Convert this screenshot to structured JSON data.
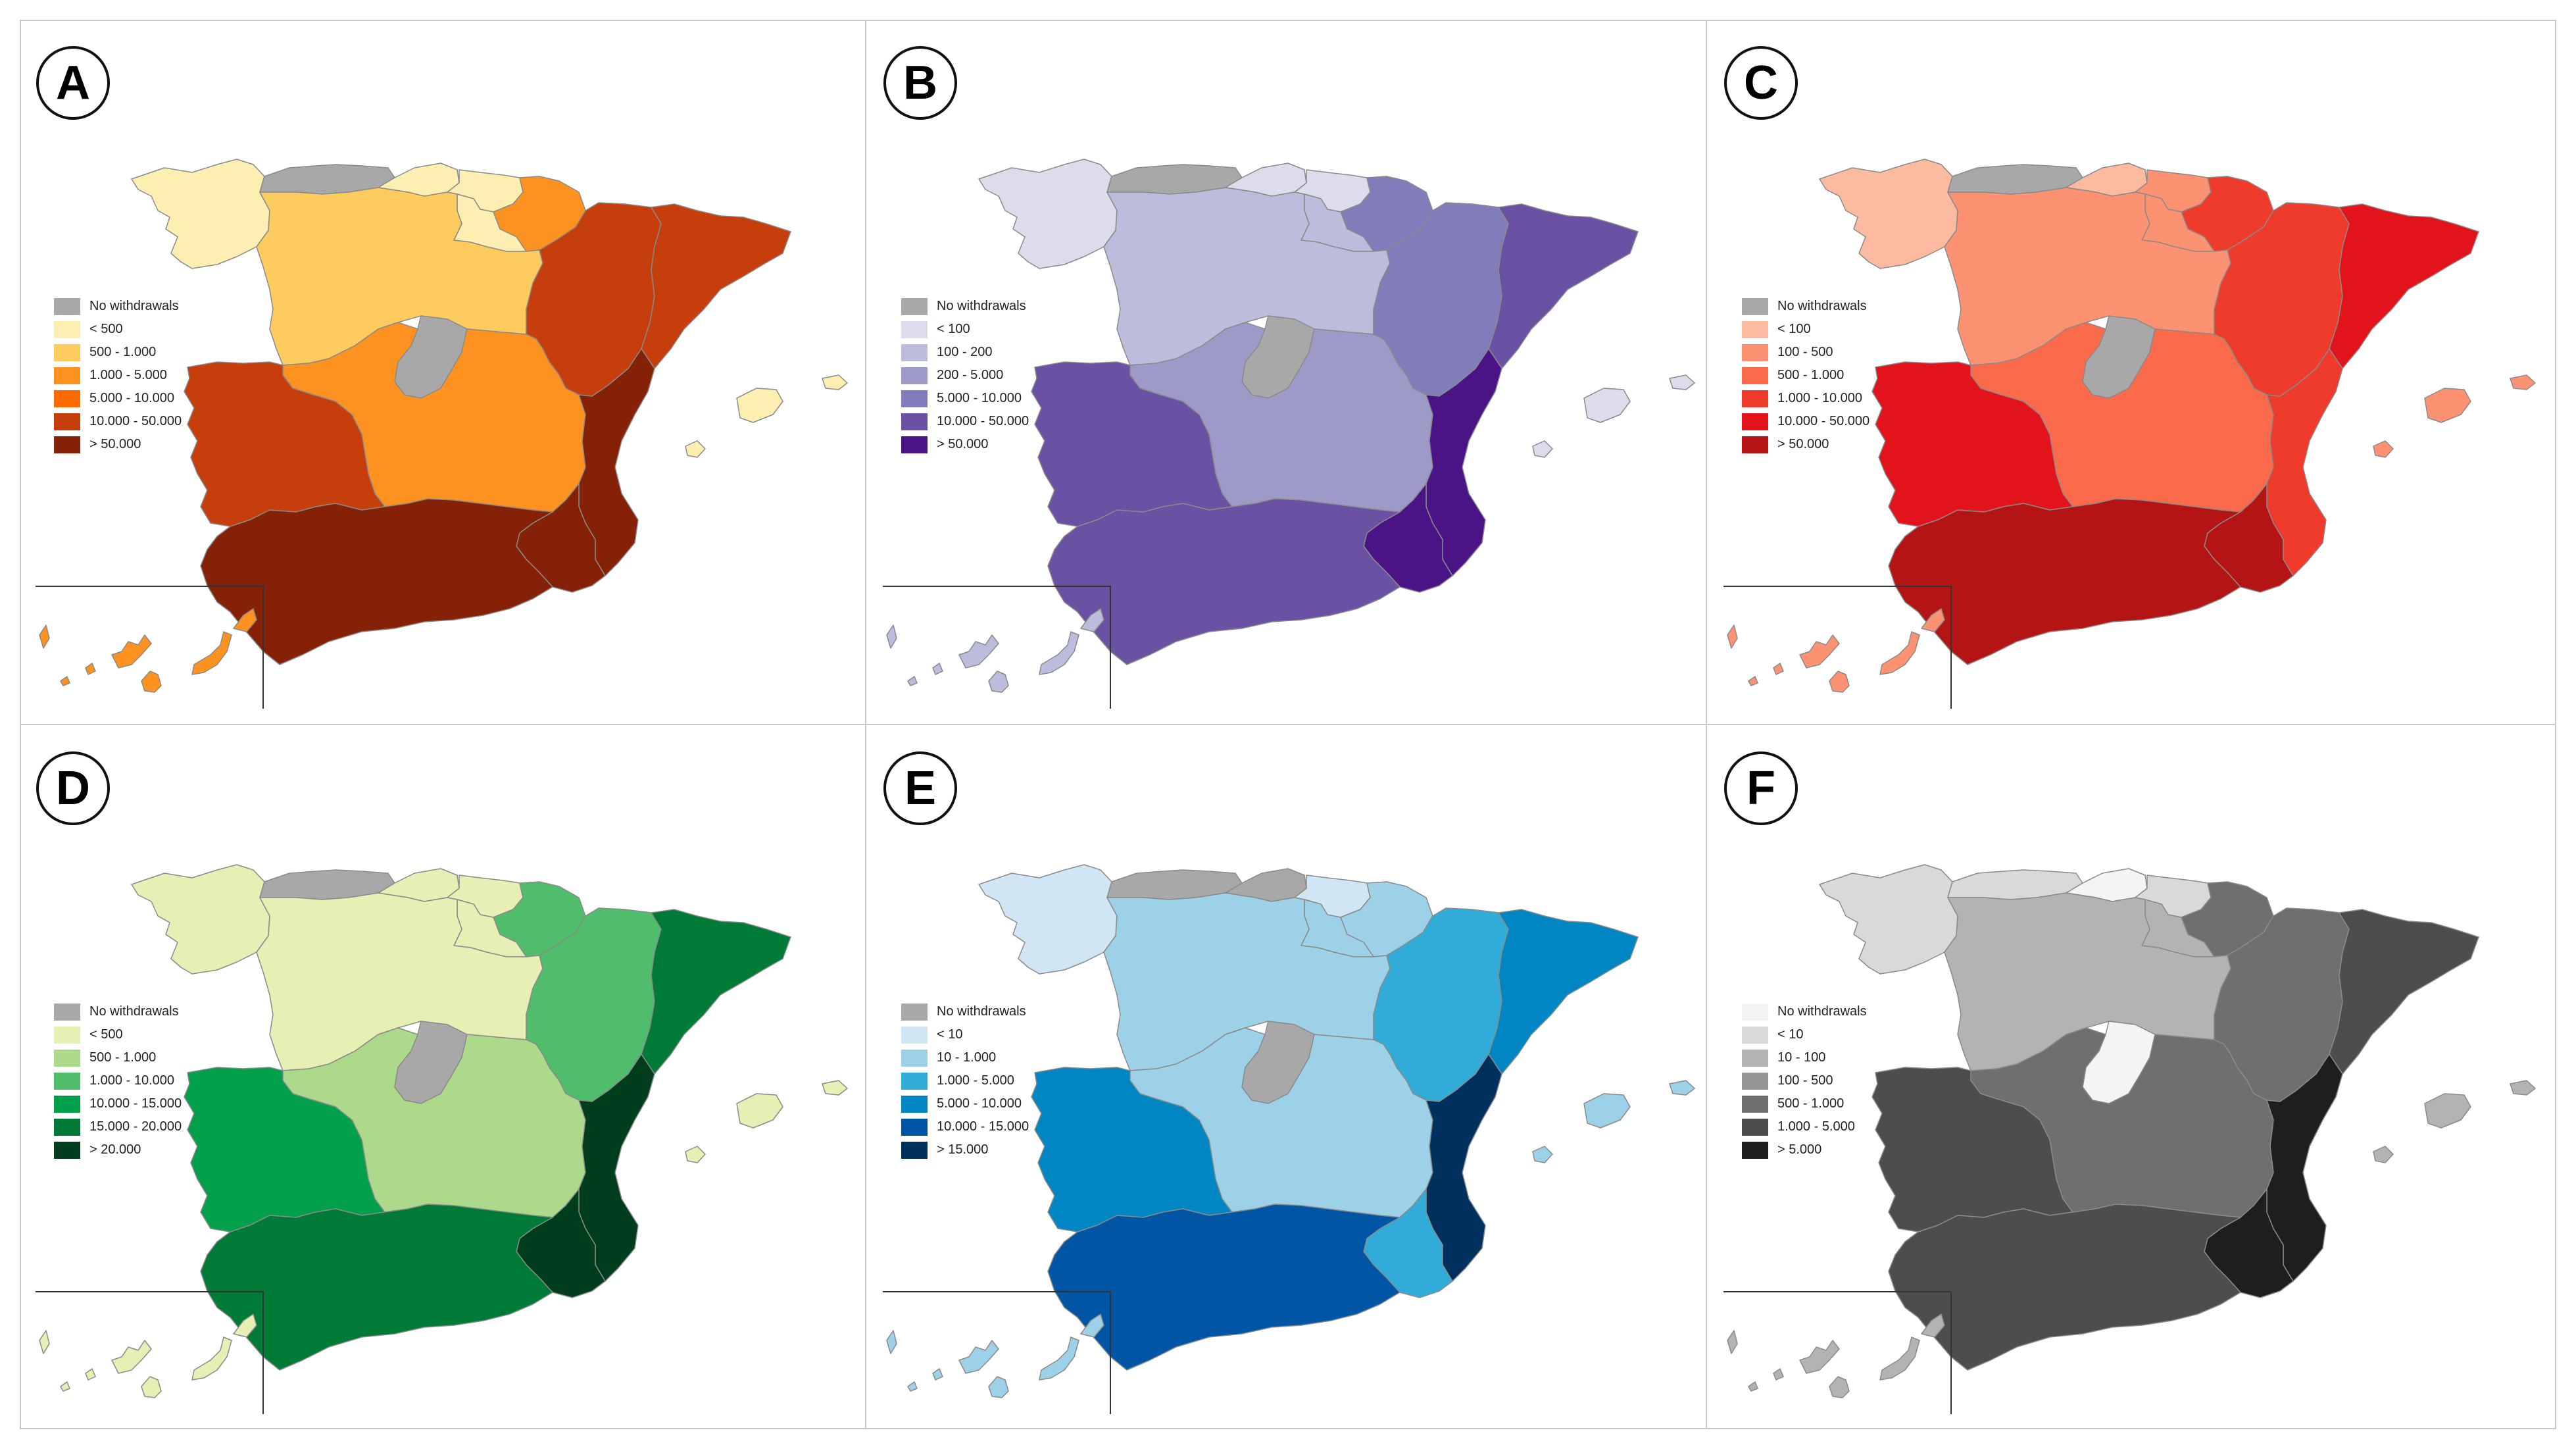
{
  "panels": [
    {
      "label": "A",
      "legend": [
        "No withdrawals",
        "< 500",
        "500 - 1.000",
        "1.000 - 5.000",
        "5.000 - 10.000",
        "10.000 - 50.000",
        "> 50.000"
      ],
      "colors": [
        "#a8a8a8",
        "#fdefb2",
        "#fdcb5e",
        "#fd9220",
        "#fd6a02",
        "#c53e0c",
        "#842106"
      ],
      "regions": {
        "galicia": 1,
        "asturias": 0,
        "cantabria": 1,
        "basque": 1,
        "navarra": 3,
        "rioja": 1,
        "castleon": 2,
        "aragon": 5,
        "catalonia": 5,
        "madrid": 0,
        "castlamancha": 3,
        "valencia": 6,
        "murcia": 6,
        "extremadura": 5,
        "andalusia": 6,
        "balearic": 1,
        "canary": 3
      }
    },
    {
      "label": "B",
      "legend": [
        "No withdrawals",
        "< 100",
        "100 - 200",
        "200 - 5.000",
        "5.000 - 10.000",
        "10.000 - 50.000",
        "> 50.000"
      ],
      "colors": [
        "#a8a8a8",
        "#dcdcec",
        "#bcbddc",
        "#9e9ac8",
        "#807dba",
        "#6a51a3",
        "#4a1486"
      ],
      "regions": {
        "galicia": 1,
        "asturias": 0,
        "cantabria": 1,
        "basque": 1,
        "navarra": 4,
        "rioja": 2,
        "castleon": 2,
        "aragon": 4,
        "catalonia": 5,
        "madrid": 0,
        "castlamancha": 3,
        "valencia": 6,
        "murcia": 6,
        "extremadura": 5,
        "andalusia": 5,
        "balearic": 1,
        "canary": 2
      }
    },
    {
      "label": "C",
      "legend": [
        "No withdrawals",
        "< 100",
        "100 - 500",
        "500 - 1.000",
        "1.000 - 10.000",
        "10.000 - 50.000",
        "> 50.000"
      ],
      "colors": [
        "#a8a8a8",
        "#fcbba1",
        "#fc9272",
        "#fb6a4a",
        "#ef3b2c",
        "#e3131b",
        "#b41414"
      ],
      "regions": {
        "galicia": 1,
        "asturias": 0,
        "cantabria": 1,
        "basque": 2,
        "navarra": 4,
        "rioja": 2,
        "castleon": 2,
        "aragon": 4,
        "catalonia": 5,
        "madrid": 0,
        "castlamancha": 3,
        "valencia": 4,
        "murcia": 6,
        "extremadura": 5,
        "andalusia": 6,
        "balearic": 2,
        "canary": 2
      }
    },
    {
      "label": "D",
      "legend": [
        "No withdrawals",
        "< 500",
        "500 - 1.000",
        "1.000 - 10.000",
        "10.000 - 15.000",
        "15.000 - 20.000",
        "> 20.000"
      ],
      "colors": [
        "#a8a8a8",
        "#e6efb4",
        "#add98a",
        "#4fbd6c",
        "#03a04c",
        "#007a37",
        "#003d1d"
      ],
      "regions": {
        "galicia": 1,
        "asturias": 0,
        "cantabria": 1,
        "basque": 1,
        "navarra": 3,
        "rioja": 1,
        "castleon": 1,
        "aragon": 3,
        "catalonia": 5,
        "madrid": 0,
        "castlamancha": 2,
        "valencia": 6,
        "murcia": 6,
        "extremadura": 4,
        "andalusia": 5,
        "balearic": 1,
        "canary": 1
      }
    },
    {
      "label": "E",
      "legend": [
        "No withdrawals",
        "< 10",
        "10 - 1.000",
        "1.000 - 5.000",
        "5.000 - 10.000",
        "10.000 - 15.000",
        "> 15.000"
      ],
      "colors": [
        "#a8a8a8",
        "#d0e6f4",
        "#9cd1e8",
        "#31acd9",
        "#0086c3",
        "#0056a4",
        "#00305e"
      ],
      "regions": {
        "galicia": 1,
        "asturias": 0,
        "cantabria": 0,
        "basque": 1,
        "navarra": 2,
        "rioja": 2,
        "castleon": 2,
        "aragon": 3,
        "catalonia": 4,
        "madrid": 0,
        "castlamancha": 2,
        "valencia": 6,
        "murcia": 3,
        "extremadura": 4,
        "andalusia": 5,
        "balearic": 2,
        "canary": 2
      }
    },
    {
      "label": "F",
      "legend": [
        "No withdrawals",
        "< 10",
        "10 - 100",
        "100 - 500",
        "500 - 1.000",
        "1.000 - 5.000",
        "> 5.000"
      ],
      "colors": [
        "#f4f4f4",
        "#d9d9d9",
        "#b3b3b3",
        "#969696",
        "#6e706f",
        "#4d4d4d",
        "#1e1e1e"
      ],
      "regions": {
        "galicia": 1,
        "asturias": 1,
        "cantabria": 0,
        "basque": 1,
        "navarra": 4,
        "rioja": 2,
        "castleon": 2,
        "aragon": 4,
        "catalonia": 5,
        "madrid": 0,
        "castlamancha": 4,
        "valencia": 6,
        "murcia": 6,
        "extremadura": 5,
        "andalusia": 5,
        "balearic": 2,
        "canary": 2
      }
    }
  ]
}
